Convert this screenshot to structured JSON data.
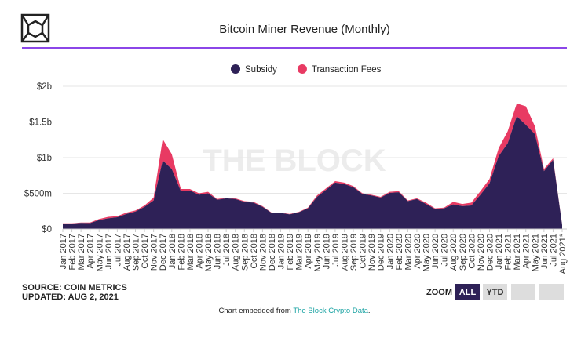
{
  "chart_data": {
    "type": "stacked_area",
    "title": "Bitcoin Miner Revenue (Monthly)",
    "watermark": "THE BLOCK",
    "categories": [
      "Jan 2017",
      "Feb 2017",
      "Mar 2017",
      "Apr 2017",
      "May 2017",
      "Jun 2017",
      "Jul 2017",
      "Aug 2017",
      "Sep 2017",
      "Oct 2017",
      "Nov 2017",
      "Dec 2017",
      "Jan 2018",
      "Feb 2018",
      "Mar 2018",
      "Apr 2018",
      "May 2018",
      "Jun 2018",
      "Jul 2018",
      "Aug 2018",
      "Sep 2018",
      "Oct 2018",
      "Nov 2018",
      "Dec 2018",
      "Jan 2019",
      "Feb 2019",
      "Mar 2019",
      "Apr 2019",
      "May 2019",
      "Jun 2019",
      "Jul 2019",
      "Aug 2019",
      "Sep 2019",
      "Oct 2019",
      "Nov 2019",
      "Dec 2019",
      "Jan 2020",
      "Feb 2020",
      "Mar 2020",
      "Apr 2020",
      "May 2020",
      "Jun 2020",
      "Jul 2020",
      "Aug 2020",
      "Sep 2020",
      "Oct 2020",
      "Nov 2020",
      "Dec 2020",
      "Jan 2021",
      "Feb 2021",
      "Mar 2021",
      "Apr 2021",
      "May 2021",
      "Jun 2021",
      "Jul 2021",
      "Aug 2021*"
    ],
    "series": [
      {
        "name": "Subsidy",
        "color": "#2e2157",
        "values": [
          75,
          75,
          85,
          82,
          125,
          150,
          165,
          210,
          245,
          310,
          400,
          960,
          840,
          530,
          540,
          480,
          500,
          410,
          430,
          420,
          380,
          370,
          310,
          225,
          225,
          205,
          235,
          290,
          450,
          550,
          650,
          630,
          585,
          490,
          470,
          440,
          505,
          515,
          390,
          420,
          350,
          280,
          290,
          345,
          320,
          330,
          480,
          640,
          1020,
          1200,
          1580,
          1460,
          1330,
          810,
          970,
          55
        ]
      },
      {
        "name": "Transaction Fees",
        "color": "#e83a63",
        "values": [
          5,
          5,
          5,
          8,
          15,
          20,
          15,
          20,
          15,
          20,
          40,
          300,
          210,
          30,
          20,
          20,
          20,
          10,
          10,
          10,
          10,
          10,
          10,
          5,
          5,
          5,
          5,
          10,
          20,
          20,
          20,
          20,
          15,
          10,
          10,
          10,
          15,
          15,
          10,
          10,
          20,
          10,
          10,
          35,
          30,
          40,
          50,
          60,
          110,
          170,
          180,
          260,
          110,
          30,
          20,
          5
        ]
      }
    ],
    "ylim": [
      0,
      2000
    ],
    "yticks": [
      {
        "value": 0,
        "label": "$0"
      },
      {
        "value": 500,
        "label": "$500m"
      },
      {
        "value": 1000,
        "label": "$1b"
      },
      {
        "value": 1500,
        "label": "$1.5b"
      },
      {
        "value": 2000,
        "label": "$2b"
      }
    ],
    "grid": true,
    "legend": "top",
    "source": "SOURCE: COIN METRICS",
    "updated": "UPDATED: AUG 2, 2021",
    "zoom_label": "ZOOM",
    "zoom_buttons": [
      "ALL",
      "YTD"
    ],
    "footer": {
      "text": "Chart embedded from",
      "link": "The Block Crypto Data",
      "end": "."
    }
  }
}
